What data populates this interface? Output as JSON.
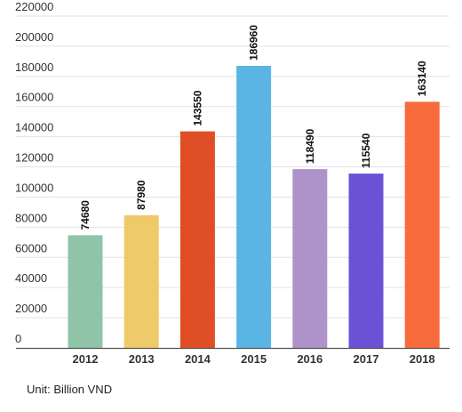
{
  "chart_data": {
    "type": "bar",
    "categories": [
      "2012",
      "2013",
      "2014",
      "2015",
      "2016",
      "2017",
      "2018"
    ],
    "values": [
      74680,
      87980,
      143550,
      186960,
      118490,
      115540,
      163140
    ],
    "colors": [
      "#8fc4a8",
      "#efca6a",
      "#e04e27",
      "#5bb5e4",
      "#ad93c9",
      "#6a51d6",
      "#f86b3a"
    ],
    "y_ticks": [
      "0",
      "20000",
      "40000",
      "60000",
      "80000",
      "100000",
      "120000",
      "140000",
      "160000",
      "180000",
      "200000",
      "220000"
    ],
    "ylim": [
      0,
      220000
    ],
    "grid": true,
    "legend": "none",
    "title": "",
    "xlabel": "",
    "ylabel": ""
  },
  "note": "Unit: Billion VND"
}
